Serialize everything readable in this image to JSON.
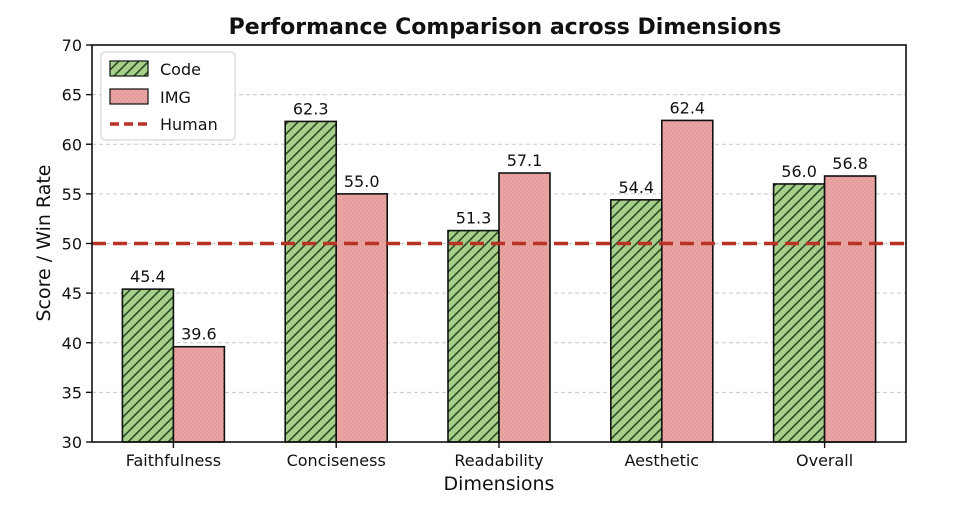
{
  "chart_data": {
    "type": "bar",
    "title": "Performance Comparison across Dimensions",
    "xlabel": "Dimensions",
    "ylabel": "Score / Win Rate",
    "categories": [
      "Faithfulness",
      "Conciseness",
      "Readability",
      "Aesthetic",
      "Overall"
    ],
    "series": [
      {
        "name": "Code",
        "values": [
          45.4,
          62.3,
          51.3,
          54.4,
          56.0
        ],
        "color": "#a6cf8c",
        "hatch": "diagonal"
      },
      {
        "name": "IMG",
        "values": [
          39.6,
          55.0,
          57.1,
          62.4,
          56.8
        ],
        "color": "#e8a0a0",
        "hatch": "dots"
      }
    ],
    "reference_line": {
      "name": "Human",
      "value": 50,
      "color": "#b83226",
      "style": "dashed"
    },
    "ylim": [
      30,
      70
    ],
    "yticks": [
      30,
      35,
      40,
      45,
      50,
      55,
      60,
      65,
      70
    ],
    "grid": "y-dashed",
    "legend": {
      "placement": "top-left",
      "entries": [
        "Code",
        "IMG",
        "Human"
      ]
    },
    "value_format": "one-decimal"
  }
}
